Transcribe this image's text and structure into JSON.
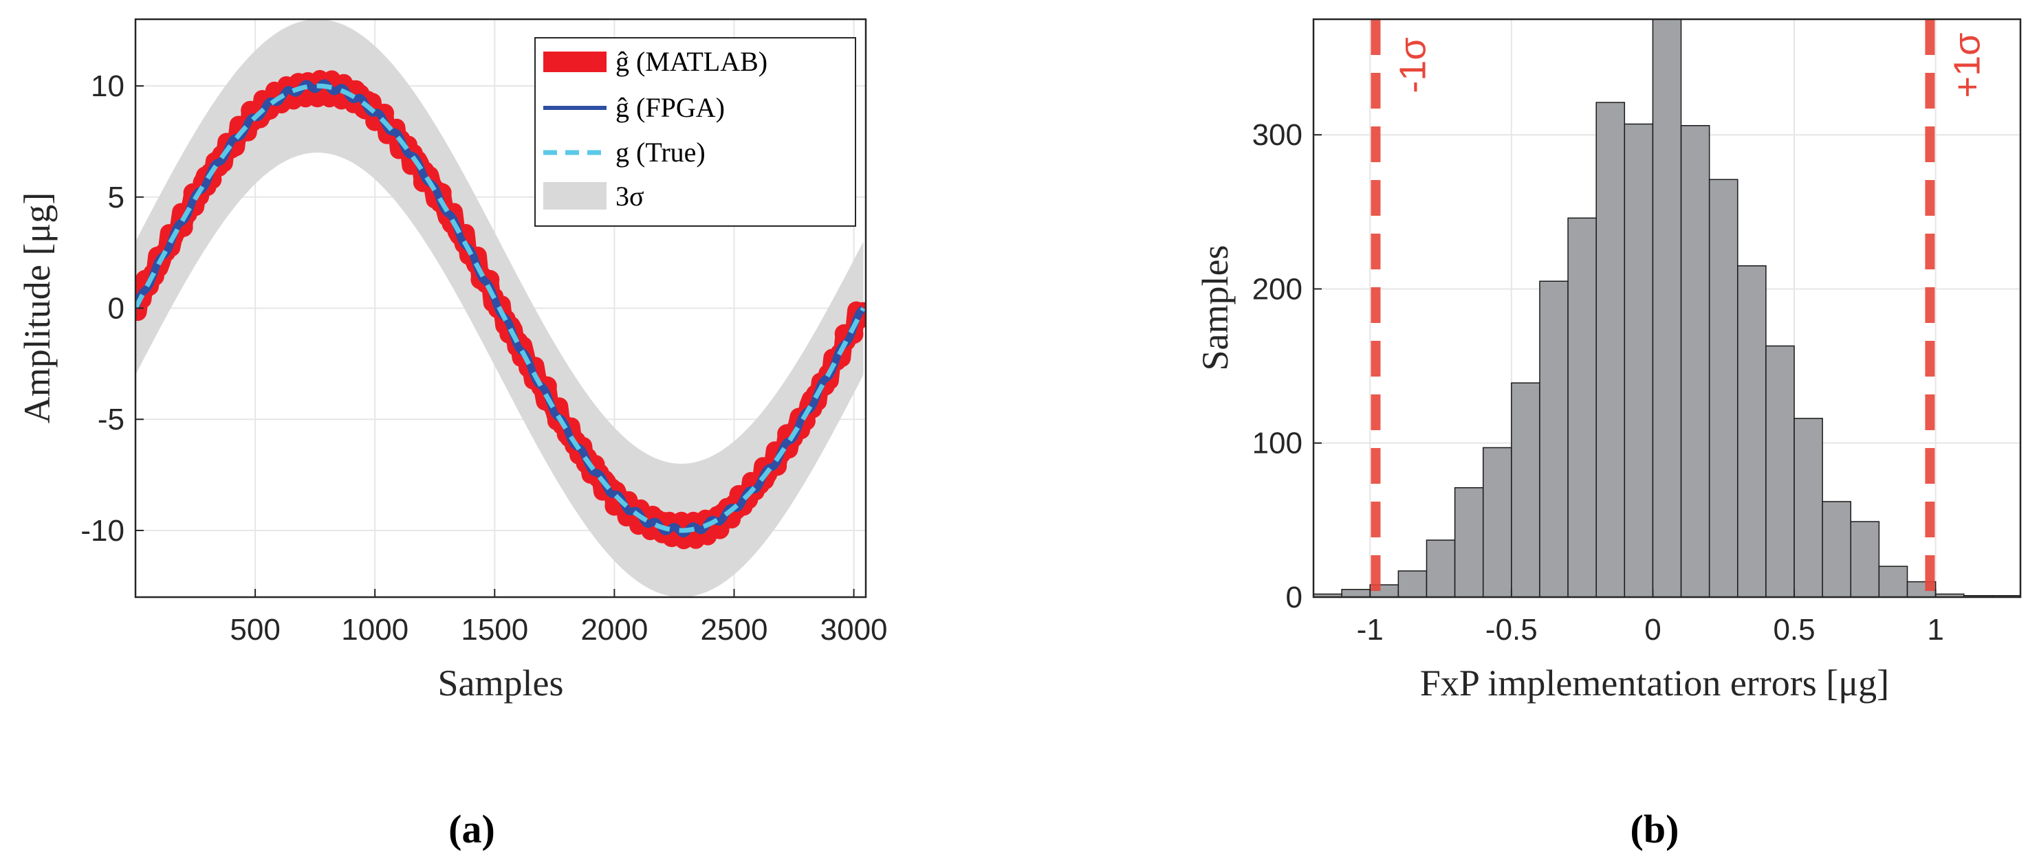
{
  "chart_data": [
    {
      "type": "line",
      "panel_label": "(a)",
      "xlabel": "Samples",
      "ylabel": "Amplitude [μg]",
      "xlim": [
        0,
        3050
      ],
      "ylim": [
        -13,
        13
      ],
      "xticks": [
        500,
        1000,
        1500,
        2000,
        2500,
        3000
      ],
      "xtick_labels": [
        "500",
        "1000",
        "1500",
        "2000",
        "2500",
        "3000"
      ],
      "yticks": [
        -10,
        -5,
        0,
        5,
        10
      ],
      "ytick_labels": [
        "-10",
        "-5",
        "0",
        "5",
        "10"
      ],
      "grid": true,
      "legend_position": "top-right",
      "signal": {
        "amplitude": 10,
        "period_samples": 3040,
        "n_samples": 3040
      },
      "band": {
        "name": "3σ",
        "half_width": 3,
        "color": "#d9d9d9"
      },
      "series": [
        {
          "name": "ĝ (MATLAB)",
          "style": "thick-markers",
          "color": "#ed1c24"
        },
        {
          "name": "ĝ (FPGA)",
          "style": "solid",
          "color": "#2e4fa3"
        },
        {
          "name": "g (True)",
          "style": "dashed",
          "color": "#5bc8e8"
        }
      ]
    },
    {
      "type": "bar",
      "panel_label": "(b)",
      "xlabel": "FxP implementation errors [μg]",
      "ylabel": "Samples",
      "xlim": [
        -1.2,
        1.3
      ],
      "ylim": [
        0,
        375
      ],
      "xticks": [
        -1,
        -0.5,
        0,
        0.5,
        1
      ],
      "xtick_labels": [
        "-1",
        "-0.5",
        "0",
        "0.5",
        "1"
      ],
      "yticks": [
        0,
        100,
        200,
        300
      ],
      "ytick_labels": [
        "0",
        "100",
        "200",
        "300"
      ],
      "grid": true,
      "bin_edges": [
        -1.2,
        -1.1,
        -1.0,
        -0.9,
        -0.8,
        -0.7,
        -0.6,
        -0.5,
        -0.4,
        -0.3,
        -0.2,
        -0.1,
        0.0,
        0.1,
        0.2,
        0.3,
        0.4,
        0.5,
        0.6,
        0.7,
        0.8,
        0.9,
        1.0,
        1.1,
        1.2,
        1.3
      ],
      "counts": [
        2,
        5,
        8,
        17,
        37,
        71,
        97,
        139,
        205,
        246,
        321,
        307,
        375,
        306,
        271,
        215,
        163,
        116,
        62,
        49,
        20,
        10,
        2,
        1,
        1
      ],
      "bar_color": "#a0a2a5",
      "sigma_lines": [
        {
          "label": "-1σ",
          "x": -0.98
        },
        {
          "label": "+1σ",
          "x": 0.98
        }
      ],
      "sigma_color": "#e8463a"
    }
  ],
  "legend": {
    "items": [
      "ĝ (MATLAB)",
      "ĝ (FPGA)",
      "g (True)",
      "3σ"
    ]
  },
  "captions": {
    "a": "(a)",
    "b": "(b)"
  }
}
